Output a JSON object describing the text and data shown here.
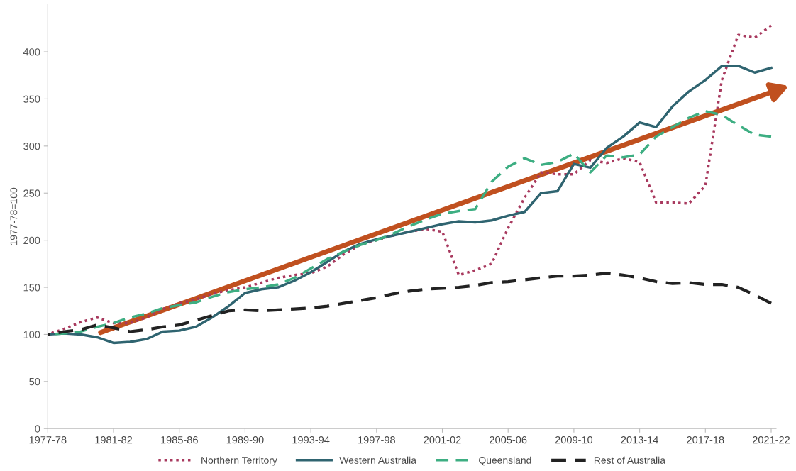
{
  "chart_data": {
    "type": "line",
    "ylabel": "1977-78=100",
    "categories": [
      "1977-78",
      null,
      null,
      null,
      "1981-82",
      null,
      null,
      null,
      "1985-86",
      null,
      null,
      null,
      "1989-90",
      null,
      null,
      null,
      "1993-94",
      null,
      null,
      null,
      "1997-98",
      null,
      null,
      null,
      "2001-02",
      null,
      null,
      null,
      "2005-06",
      null,
      null,
      null,
      "2009-10",
      null,
      null,
      null,
      "2013-14",
      null,
      null,
      null,
      "2017-18",
      null,
      null,
      null,
      "2021-22"
    ],
    "ylim": [
      0,
      450
    ],
    "yticks": [
      0,
      50,
      100,
      150,
      200,
      250,
      300,
      350,
      400
    ],
    "grid": false,
    "legend": "bottom",
    "marker": "none",
    "series": [
      {
        "name": "Northern Territory",
        "color": "#a8395e",
        "line_style": "dotted",
        "values": [
          100,
          106,
          113,
          118,
          112,
          112,
          118,
          127,
          133,
          137,
          143,
          147,
          150,
          155,
          160,
          163,
          165,
          172,
          185,
          195,
          200,
          205,
          209,
          212,
          209,
          163,
          168,
          175,
          213,
          245,
          272,
          270,
          270,
          285,
          282,
          287,
          283,
          240,
          240,
          239,
          258,
          370,
          418,
          415,
          428
        ]
      },
      {
        "name": "Western Australia",
        "color": "#2f6470",
        "line_style": "solid",
        "values": [
          100,
          101,
          100,
          97,
          91,
          92,
          95,
          103,
          104,
          108,
          118,
          130,
          144,
          148,
          150,
          157,
          166,
          177,
          188,
          196,
          201,
          205,
          209,
          213,
          217,
          220,
          219,
          221,
          226,
          230,
          250,
          252,
          281,
          277,
          298,
          310,
          325,
          320,
          342,
          358,
          370,
          385,
          385,
          378,
          383
        ]
      },
      {
        "name": "Queensland",
        "color": "#3dae82",
        "line_style": "dashed",
        "values": [
          100,
          101,
          103,
          108,
          112,
          118,
          122,
          128,
          131,
          134,
          140,
          145,
          148,
          150,
          153,
          160,
          170,
          180,
          188,
          195,
          200,
          207,
          215,
          222,
          228,
          231,
          233,
          262,
          278,
          287,
          280,
          283,
          292,
          272,
          290,
          288,
          291,
          310,
          320,
          330,
          337,
          333,
          322,
          312,
          310
        ]
      },
      {
        "name": "Rest of Australia",
        "color": "#222222",
        "line_style": "dashed",
        "values": [
          100,
          103,
          105,
          110,
          107,
          103,
          105,
          108,
          110,
          115,
          120,
          125,
          126,
          125,
          126,
          127,
          128,
          130,
          133,
          136,
          139,
          143,
          146,
          148,
          149,
          150,
          152,
          155,
          156,
          158,
          160,
          162,
          162,
          163,
          165,
          163,
          160,
          156,
          154,
          155,
          153,
          153,
          150,
          142,
          133
        ]
      }
    ]
  }
}
